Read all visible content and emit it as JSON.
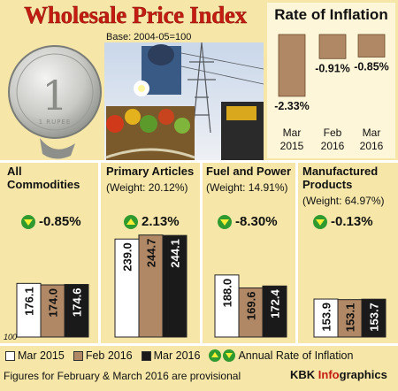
{
  "header": {
    "title": "Wholesale Price Index",
    "base": "Base: 2004-05=100"
  },
  "coin_lettering": "1 RUPEE",
  "inflation": {
    "title": "Rate of Inflation",
    "unit": "%",
    "bar_color": "#b08866",
    "points": [
      {
        "label1": "Mar",
        "label2": "2015",
        "value": -2.33,
        "display": "-2.33%"
      },
      {
        "label1": "Feb",
        "label2": "2016",
        "value": -0.91,
        "display": "-0.91%"
      },
      {
        "label1": "Mar",
        "label2": "2016",
        "value": -0.85,
        "display": "-0.85%"
      }
    ]
  },
  "chart_data": {
    "type": "bar",
    "baseline": 100,
    "baseline_label": "100",
    "series": [
      {
        "name": "Mar 2015",
        "color": "#ffffff"
      },
      {
        "name": "Feb 2016",
        "color": "#b08866"
      },
      {
        "name": "Mar 2016",
        "color": "#1a1a1a"
      }
    ],
    "groups": [
      {
        "title_lines": [
          "All",
          "Commodities"
        ],
        "weight": "",
        "rate": "-0.85%",
        "direction": "down",
        "values": [
          176.1,
          174.0,
          174.6
        ],
        "labels": [
          "176.1",
          "174.0",
          "174.6"
        ]
      },
      {
        "title_lines": [
          "Primary Articles"
        ],
        "weight": "(Weight: 20.12%)",
        "rate": "2.13%",
        "direction": "up",
        "values": [
          239.0,
          244.7,
          244.1
        ],
        "labels": [
          "239.0",
          "244.7",
          "244.1"
        ]
      },
      {
        "title_lines": [
          "Fuel and Power"
        ],
        "weight": "(Weight: 14.91%)",
        "rate": "-8.30%",
        "direction": "down",
        "values": [
          188.0,
          169.6,
          172.4
        ],
        "labels": [
          "188.0",
          "169.6",
          "172.4"
        ]
      },
      {
        "title_lines": [
          "Manufactured",
          "Products"
        ],
        "weight": "(Weight: 64.97%)",
        "rate": "-0.13%",
        "direction": "down",
        "values": [
          153.9,
          153.1,
          153.7
        ],
        "labels": [
          "153.9",
          "153.1",
          "153.7"
        ]
      }
    ]
  },
  "legend": {
    "items": [
      "Mar 2015",
      "Feb 2016",
      "Mar 2016"
    ],
    "rate_label": "Annual Rate of Inflation"
  },
  "footer": {
    "note": "Figures for February & March 2016 are provisional",
    "credit_brand": "KBK",
    "credit_accent": "Info",
    "credit_rest": "graphics"
  }
}
